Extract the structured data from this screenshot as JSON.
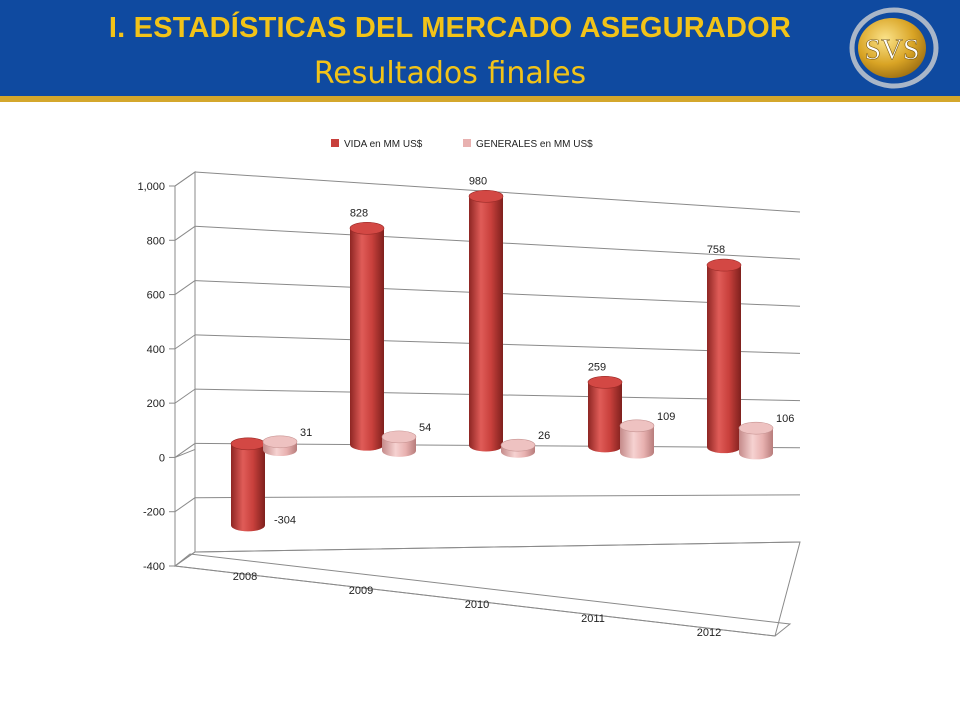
{
  "slide": {
    "title": "I. ESTADÍSTICAS DEL MERCADO ASEGURADOR",
    "subtitle": "Resultados finales",
    "logo_text": "SVS"
  },
  "colors": {
    "header_bg": "#0f4aa0",
    "header_rule": "#d4a72c",
    "title": "#f2c318",
    "vida": "#c8403c",
    "generales": "#e8b1b0"
  },
  "chart_data": {
    "type": "bar",
    "style": "3d-cylinder",
    "categories": [
      "2008",
      "2009",
      "2010",
      "2011",
      "2012"
    ],
    "series": [
      {
        "name": "VIDA en MM US$",
        "values": [
          -304,
          828,
          980,
          259,
          758
        ],
        "labels": [
          "-304",
          "828",
          "980",
          "259",
          "758"
        ]
      },
      {
        "name": "GENERALES en MM US$",
        "values": [
          31,
          54,
          26,
          109,
          106
        ],
        "labels": [
          "31",
          "54",
          "26",
          "109",
          "106"
        ]
      }
    ],
    "ylim": [
      -400,
      1000
    ],
    "yticks": [
      -400,
      -200,
      0,
      200,
      400,
      600,
      800,
      1000
    ],
    "ytick_labels": [
      "-400",
      "-200",
      "0",
      "200",
      "400",
      "600",
      "800",
      "1,000"
    ],
    "grid": true,
    "legend": "top"
  }
}
